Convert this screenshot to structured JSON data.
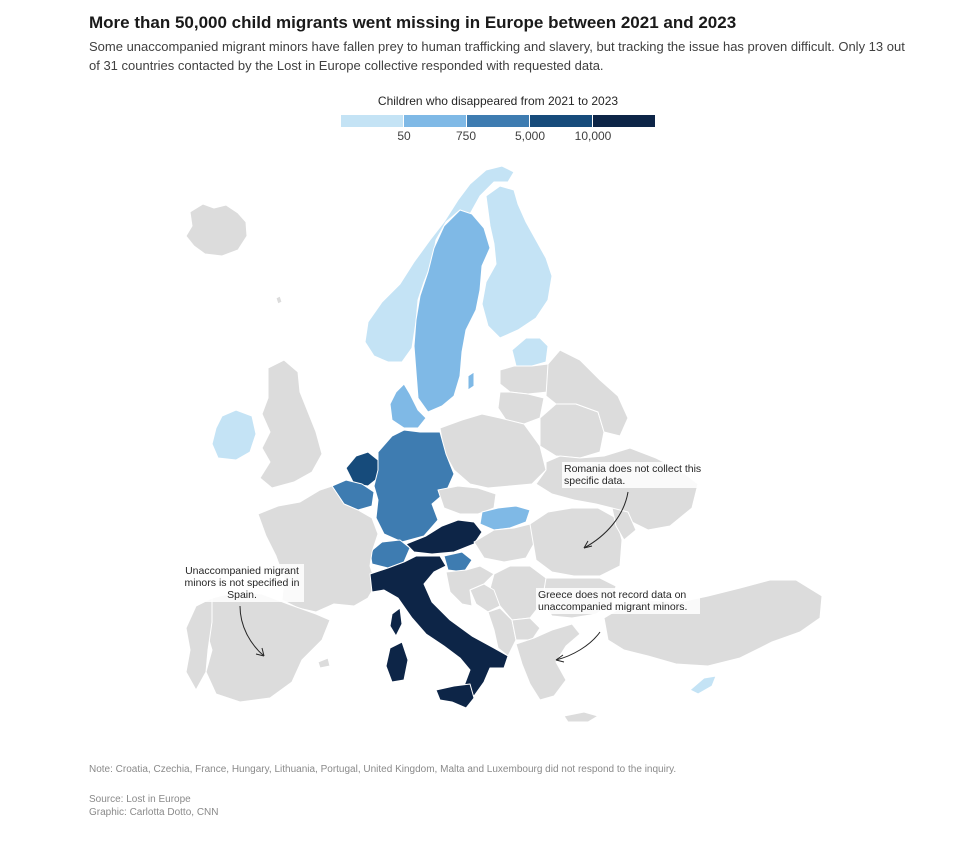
{
  "header": {
    "title": "More than 50,000 child migrants went missing in Europe between 2021 and 2023",
    "subtitle": "Some unaccompanied migrant minors have fallen prey to human trafficking and slavery, but tracking the issue has proven difficult. Only 13 out of 31 countries contacted by the Lost in Europe collective responded with requested data."
  },
  "legend": {
    "title": "Children who disappeared from 2021 to 2023",
    "ticks": [
      "50",
      "750",
      "5,000",
      "10,000"
    ],
    "colors": [
      "#c4e3f5",
      "#7fb9e6",
      "#3e7cb1",
      "#164b7b",
      "#0d2547"
    ]
  },
  "colors": {
    "no_data": "#dcdcdc",
    "border": "#ffffff"
  },
  "annotations": {
    "romania": "Romania does not collect this specific data.",
    "greece": "Greece does not record data on unaccompanied migrant minors.",
    "spain": "Unaccompanied migrant minors is not specified in Spain."
  },
  "footer": {
    "note": "Note: Croatia, Czechia, France, Hungary, Lithuania, Portugal, United Kingdom, Malta and Luxembourg did not respond to the inquiry.",
    "source": "Source: Lost in Europe",
    "credit": "Graphic: Carlotta Dotto, CNN"
  }
}
